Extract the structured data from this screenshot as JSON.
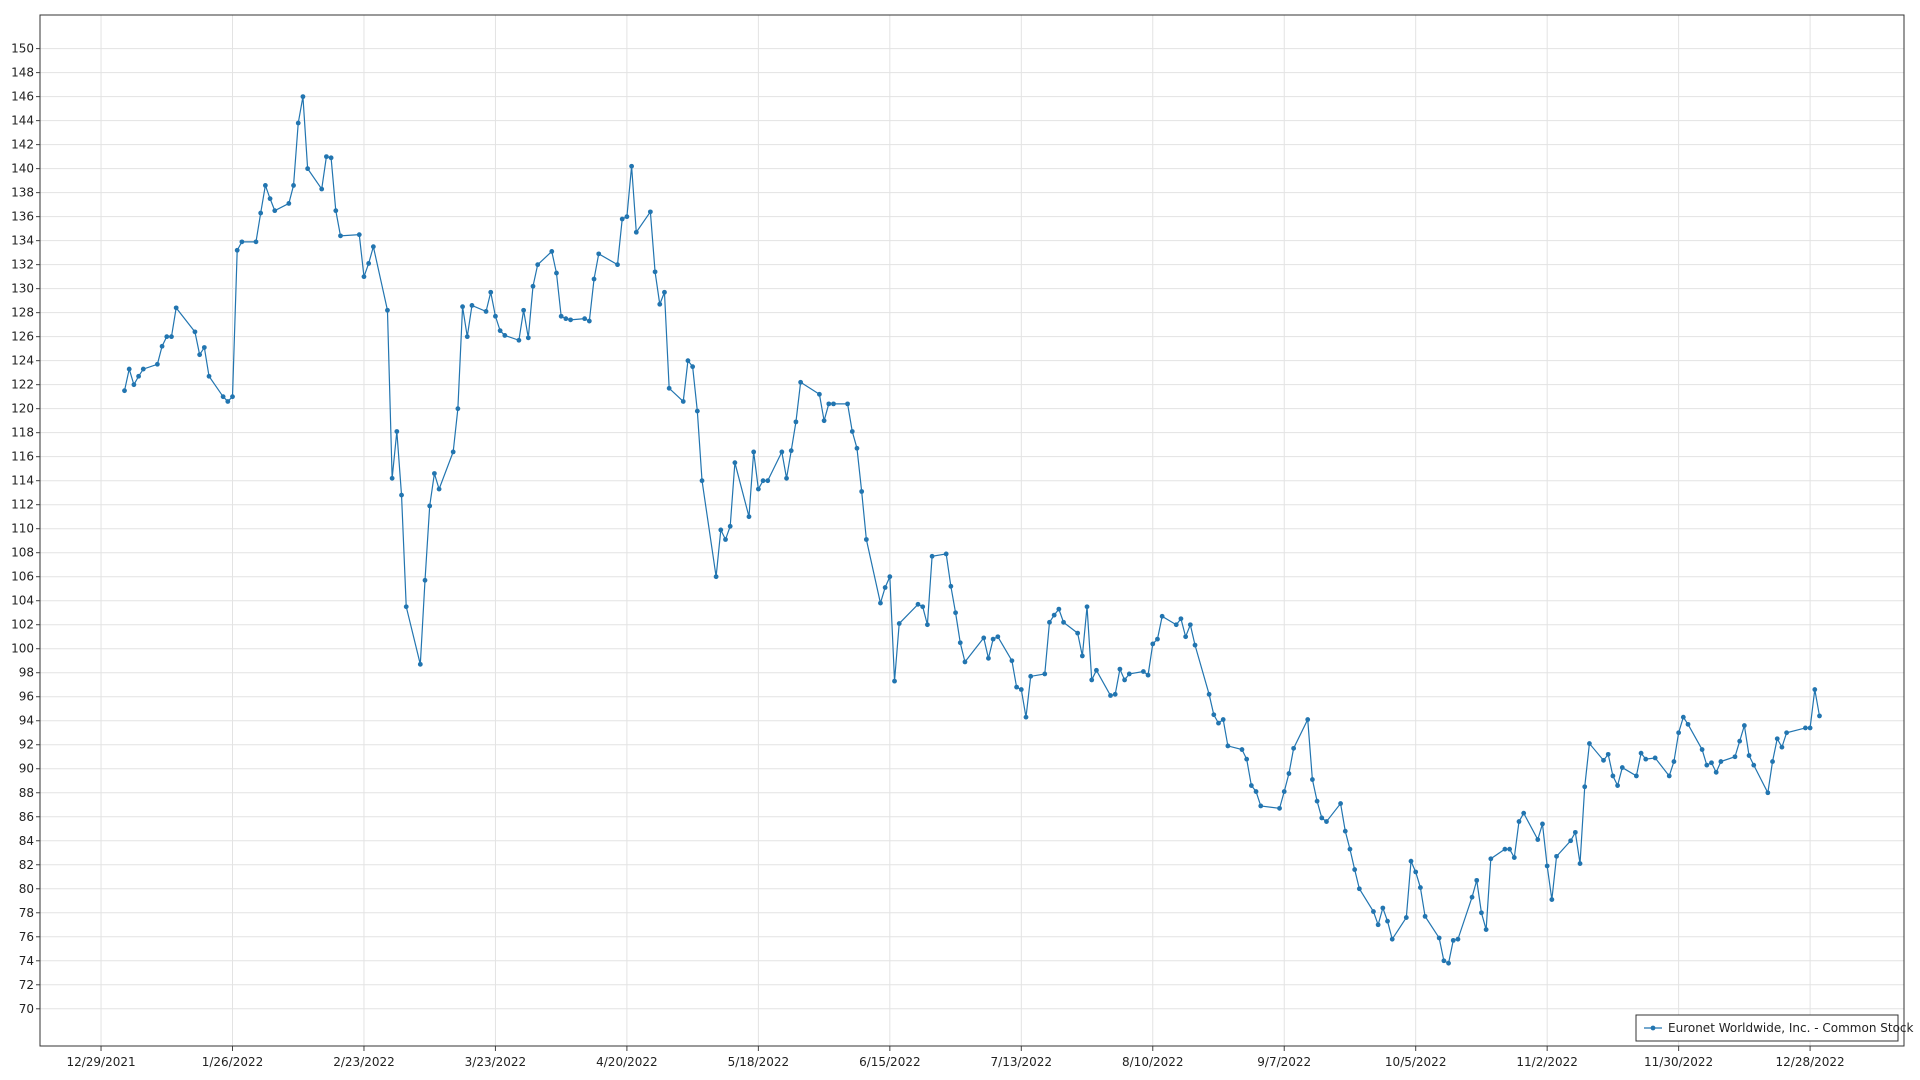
{
  "chart_data": {
    "type": "line",
    "x": [
      "1/3/2022",
      "1/4/2022",
      "1/5/2022",
      "1/6/2022",
      "1/7/2022",
      "1/10/2022",
      "1/11/2022",
      "1/12/2022",
      "1/13/2022",
      "1/14/2022",
      "1/18/2022",
      "1/19/2022",
      "1/20/2022",
      "1/21/2022",
      "1/24/2022",
      "1/25/2022",
      "1/26/2022",
      "1/27/2022",
      "1/28/2022",
      "1/31/2022",
      "2/1/2022",
      "2/2/2022",
      "2/3/2022",
      "2/4/2022",
      "2/7/2022",
      "2/8/2022",
      "2/9/2022",
      "2/10/2022",
      "2/11/2022",
      "2/14/2022",
      "2/15/2022",
      "2/16/2022",
      "2/17/2022",
      "2/18/2022",
      "2/22/2022",
      "2/23/2022",
      "2/24/2022",
      "2/25/2022",
      "2/28/2022",
      "3/1/2022",
      "3/2/2022",
      "3/3/2022",
      "3/4/2022",
      "3/7/2022",
      "3/8/2022",
      "3/9/2022",
      "3/10/2022",
      "3/11/2022",
      "3/14/2022",
      "3/15/2022",
      "3/16/2022",
      "3/17/2022",
      "3/18/2022",
      "3/21/2022",
      "3/22/2022",
      "3/23/2022",
      "3/24/2022",
      "3/25/2022",
      "3/28/2022",
      "3/29/2022",
      "3/30/2022",
      "3/31/2022",
      "4/1/2022",
      "4/4/2022",
      "4/5/2022",
      "4/6/2022",
      "4/7/2022",
      "4/8/2022",
      "4/11/2022",
      "4/12/2022",
      "4/13/2022",
      "4/14/2022",
      "4/18/2022",
      "4/19/2022",
      "4/20/2022",
      "4/21/2022",
      "4/22/2022",
      "4/25/2022",
      "4/26/2022",
      "4/27/2022",
      "4/28/2022",
      "4/29/2022",
      "5/2/2022",
      "5/3/2022",
      "5/4/2022",
      "5/5/2022",
      "5/6/2022",
      "5/9/2022",
      "5/10/2022",
      "5/11/2022",
      "5/12/2022",
      "5/13/2022",
      "5/16/2022",
      "5/17/2022",
      "5/18/2022",
      "5/19/2022",
      "5/20/2022",
      "5/23/2022",
      "5/24/2022",
      "5/25/2022",
      "5/26/2022",
      "5/27/2022",
      "5/31/2022",
      "6/1/2022",
      "6/2/2022",
      "6/3/2022",
      "6/6/2022",
      "6/7/2022",
      "6/8/2022",
      "6/9/2022",
      "6/10/2022",
      "6/13/2022",
      "6/14/2022",
      "6/15/2022",
      "6/16/2022",
      "6/17/2022",
      "6/21/2022",
      "6/22/2022",
      "6/23/2022",
      "6/24/2022",
      "6/27/2022",
      "6/28/2022",
      "6/29/2022",
      "6/30/2022",
      "7/1/2022",
      "7/5/2022",
      "7/6/2022",
      "7/7/2022",
      "7/8/2022",
      "7/11/2022",
      "7/12/2022",
      "7/13/2022",
      "7/14/2022",
      "7/15/2022",
      "7/18/2022",
      "7/19/2022",
      "7/20/2022",
      "7/21/2022",
      "7/22/2022",
      "7/25/2022",
      "7/26/2022",
      "7/27/2022",
      "7/28/2022",
      "7/29/2022",
      "8/1/2022",
      "8/2/2022",
      "8/3/2022",
      "8/4/2022",
      "8/5/2022",
      "8/8/2022",
      "8/9/2022",
      "8/10/2022",
      "8/11/2022",
      "8/12/2022",
      "8/15/2022",
      "8/16/2022",
      "8/17/2022",
      "8/18/2022",
      "8/19/2022",
      "8/22/2022",
      "8/23/2022",
      "8/24/2022",
      "8/25/2022",
      "8/26/2022",
      "8/29/2022",
      "8/30/2022",
      "8/31/2022",
      "9/1/2022",
      "9/2/2022",
      "9/6/2022",
      "9/7/2022",
      "9/8/2022",
      "9/9/2022",
      "9/12/2022",
      "9/13/2022",
      "9/14/2022",
      "9/15/2022",
      "9/16/2022",
      "9/19/2022",
      "9/20/2022",
      "9/21/2022",
      "9/22/2022",
      "9/23/2022",
      "9/26/2022",
      "9/27/2022",
      "9/28/2022",
      "9/29/2022",
      "9/30/2022",
      "10/3/2022",
      "10/4/2022",
      "10/5/2022",
      "10/6/2022",
      "10/7/2022",
      "10/10/2022",
      "10/11/2022",
      "10/12/2022",
      "10/13/2022",
      "10/14/2022",
      "10/17/2022",
      "10/18/2022",
      "10/19/2022",
      "10/20/2022",
      "10/21/2022",
      "10/24/2022",
      "10/25/2022",
      "10/26/2022",
      "10/27/2022",
      "10/28/2022",
      "10/31/2022",
      "11/1/2022",
      "11/2/2022",
      "11/3/2022",
      "11/4/2022",
      "11/7/2022",
      "11/8/2022",
      "11/9/2022",
      "11/10/2022",
      "11/11/2022",
      "11/14/2022",
      "11/15/2022",
      "11/16/2022",
      "11/17/2022",
      "11/18/2022",
      "11/21/2022",
      "11/22/2022",
      "11/23/2022",
      "11/25/2022",
      "11/28/2022",
      "11/29/2022",
      "11/30/2022",
      "12/1/2022",
      "12/2/2022",
      "12/5/2022",
      "12/6/2022",
      "12/7/2022",
      "12/8/2022",
      "12/9/2022",
      "12/12/2022",
      "12/13/2022",
      "12/14/2022",
      "12/15/2022",
      "12/16/2022",
      "12/19/2022",
      "12/20/2022",
      "12/21/2022",
      "12/22/2022",
      "12/23/2022",
      "12/27/2022",
      "12/28/2022",
      "12/29/2022",
      "12/30/2022"
    ],
    "series": [
      {
        "name": "Euronet Worldwide, Inc. - Common Stock",
        "color": "#2275b0",
        "values": [
          121.5,
          123.3,
          122,
          122.7,
          123.3,
          123.7,
          125.2,
          126,
          126,
          128.4,
          126.4,
          124.5,
          125.1,
          122.7,
          121,
          120.6,
          121,
          133.2,
          133.9,
          133.9,
          136.3,
          138.6,
          137.5,
          136.5,
          137.1,
          138.6,
          143.8,
          146,
          140,
          138.3,
          141,
          140.9,
          136.5,
          134.4,
          134.5,
          131,
          132.1,
          133.5,
          128.2,
          114.2,
          118.1,
          112.8,
          103.5,
          98.7,
          105.7,
          111.9,
          114.6,
          113.3,
          116.4,
          120,
          128.5,
          126,
          128.6,
          128.1,
          129.7,
          127.7,
          126.5,
          126.1,
          125.7,
          128.2,
          125.9,
          130.2,
          132,
          133.1,
          131.3,
          127.7,
          127.5,
          127.4,
          127.5,
          127.3,
          130.8,
          132.9,
          132,
          135.8,
          136,
          140.2,
          134.7,
          136.4,
          131.4,
          128.7,
          129.7,
          121.7,
          120.6,
          124,
          123.5,
          119.8,
          114,
          106,
          109.9,
          109.1,
          110.2,
          115.5,
          111,
          116.4,
          113.3,
          114,
          114,
          116.4,
          114.2,
          116.5,
          118.9,
          122.2,
          121.2,
          119,
          120.4,
          120.4,
          120.4,
          118.1,
          116.7,
          113.1,
          109.1,
          103.8,
          105.1,
          106,
          97.3,
          102.1,
          103.7,
          103.5,
          102,
          107.7,
          107.9,
          105.2,
          103,
          100.5,
          98.9,
          100.9,
          99.2,
          100.8,
          101,
          99,
          96.8,
          96.6,
          94.3,
          97.7,
          97.9,
          102.2,
          102.8,
          103.3,
          102.2,
          101.3,
          99.4,
          103.5,
          97.4,
          98.2,
          96.1,
          96.2,
          98.3,
          97.4,
          97.9,
          98.1,
          97.8,
          100.4,
          100.8,
          102.7,
          102,
          102.5,
          101,
          102,
          100.3,
          96.2,
          94.5,
          93.8,
          94.1,
          91.9,
          91.6,
          90.8,
          88.6,
          88.1,
          86.9,
          86.7,
          88.1,
          89.6,
          91.7,
          94.1,
          89.1,
          87.3,
          85.9,
          85.6,
          87.1,
          84.8,
          83.3,
          81.6,
          80,
          78.1,
          77,
          78.4,
          77.3,
          75.8,
          77.6,
          82.3,
          81.4,
          80.1,
          77.7,
          75.9,
          74,
          73.8,
          75.7,
          75.8,
          79.3,
          80.7,
          78,
          76.6,
          82.5,
          83.3,
          83.3,
          82.6,
          85.6,
          86.3,
          84.1,
          85.4,
          81.9,
          79.1,
          82.7,
          84,
          84.7,
          82.1,
          88.5,
          92.1,
          90.7,
          91.2,
          89.4,
          88.6,
          90.1,
          89.4,
          91.3,
          90.8,
          90.9,
          89.4,
          90.6,
          93,
          94.3,
          93.7,
          91.6,
          90.3,
          90.5,
          89.7,
          90.6,
          91,
          92.3,
          93.6,
          91.1,
          90.3,
          88,
          90.6,
          92.5,
          91.8,
          93,
          93.4,
          93.4,
          96.6,
          94.4
        ]
      }
    ],
    "xlim": [
      "12/16/2021",
      "1/17/2023"
    ],
    "xticks": [
      "12/29/2021",
      "1/26/2022",
      "2/23/2022",
      "3/23/2022",
      "4/20/2022",
      "5/18/2022",
      "6/15/2022",
      "7/13/2022",
      "8/10/2022",
      "9/7/2022",
      "10/5/2022",
      "11/2/2022",
      "11/30/2022",
      "12/28/2022"
    ],
    "ylim": [
      66.9,
      152.8
    ],
    "yticks": [
      70,
      72,
      74,
      76,
      78,
      80,
      82,
      84,
      86,
      88,
      90,
      92,
      94,
      96,
      98,
      100,
      102,
      104,
      106,
      108,
      110,
      112,
      114,
      116,
      118,
      120,
      122,
      124,
      126,
      128,
      130,
      132,
      134,
      136,
      138,
      140,
      142,
      144,
      146,
      148,
      150
    ],
    "grid": true,
    "markers": true,
    "legend": "lower right"
  }
}
